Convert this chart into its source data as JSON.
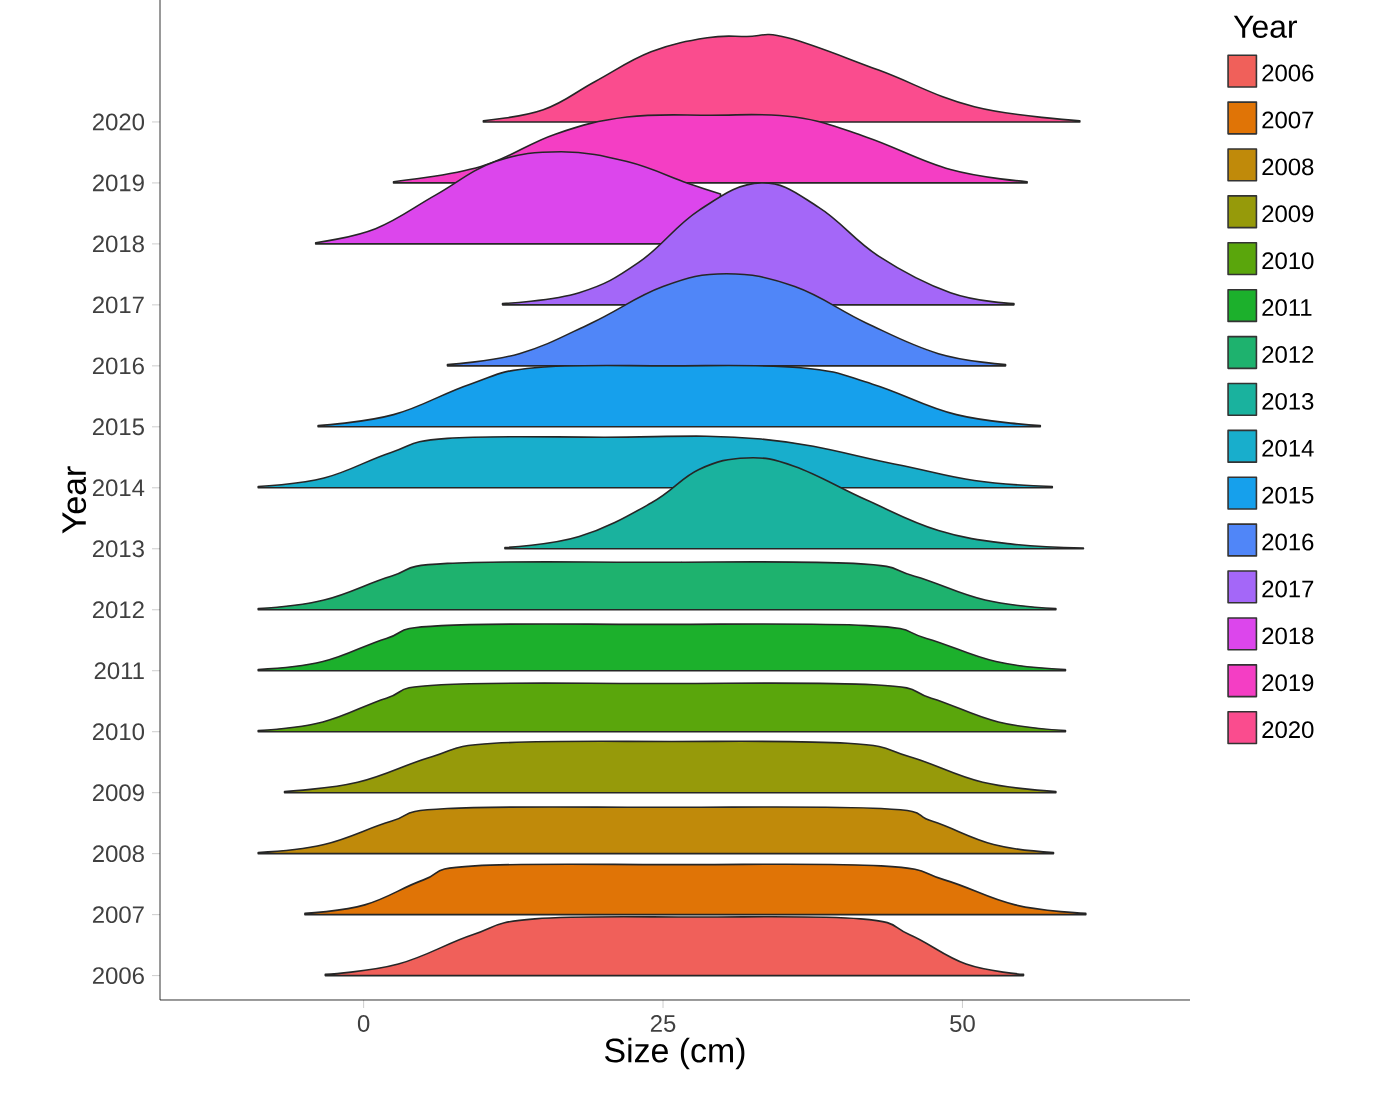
{
  "chart_data": {
    "type": "area",
    "xlabel": "Size (cm)",
    "ylabel": "Year",
    "legend_title": "Year",
    "legend": "right",
    "grid": false,
    "xlim": [
      -17,
      69
    ],
    "xticks": [
      0,
      25,
      50
    ],
    "ylim": [
      2005.6,
      2022
    ],
    "yticks": [
      2006,
      2007,
      2008,
      2009,
      2010,
      2011,
      2012,
      2013,
      2014,
      2015,
      2016,
      2017,
      2018,
      2019,
      2020
    ],
    "series": [
      {
        "name": "2006",
        "color": "#f0605a",
        "x": [
          -3.2,
          2.9,
          9.1,
          14.3,
          27.9,
          41.5,
          45.6,
          50.3,
          55.1
        ],
        "values": [
          2006.02,
          2006.19,
          2006.67,
          2006.93,
          2006.96,
          2006.93,
          2006.67,
          2006.19,
          2006.02
        ]
      },
      {
        "name": "2007",
        "color": "#e07406",
        "x": [
          -4.9,
          0.1,
          5.0,
          9.3,
          26.3,
          43.2,
          48.5,
          54.4,
          60.3
        ],
        "values": [
          2007.02,
          2007.16,
          2007.57,
          2007.8,
          2007.82,
          2007.8,
          2007.57,
          2007.16,
          2007.02
        ]
      },
      {
        "name": "2008",
        "color": "#c08a0a",
        "x": [
          -8.8,
          -3.3,
          2.3,
          7,
          25.1,
          43.2,
          47.5,
          52.6,
          57.6
        ],
        "values": [
          2008.02,
          2008.15,
          2008.53,
          2008.74,
          2008.76,
          2008.74,
          2008.53,
          2008.15,
          2008.02
        ]
      },
      {
        "name": "2009",
        "color": "#969a0a",
        "x": [
          -6.6,
          -0.5,
          5.7,
          10.9,
          25.7,
          40.4,
          45.6,
          51.7,
          57.8
        ],
        "values": [
          2009.02,
          2009.17,
          2009.59,
          2009.81,
          2009.84,
          2009.81,
          2009.59,
          2009.17,
          2009.02
        ]
      },
      {
        "name": "2010",
        "color": "#5aa60c",
        "x": [
          -8.8,
          -3.4,
          1.9,
          6.5,
          24.6,
          42.6,
          47.4,
          53.0,
          58.6
        ],
        "values": [
          2010.02,
          2010.16,
          2010.55,
          2010.77,
          2010.79,
          2010.77,
          2010.55,
          2010.16,
          2010.02
        ]
      },
      {
        "name": "2011",
        "color": "#1cb02c",
        "x": [
          -8.8,
          -3.4,
          1.9,
          6.5,
          24.3,
          42,
          47,
          52.8,
          58.6
        ],
        "values": [
          2011.02,
          2011.15,
          2011.53,
          2011.74,
          2011.76,
          2011.74,
          2011.53,
          2011.15,
          2011.02
        ]
      },
      {
        "name": "2012",
        "color": "#1eb26e",
        "x": [
          -8.8,
          -3.3,
          2.3,
          7,
          24,
          40.9,
          46,
          51.9,
          57.8
        ],
        "values": [
          2012.02,
          2012.16,
          2012.55,
          2012.76,
          2012.78,
          2012.76,
          2012.55,
          2012.16,
          2012.02
        ]
      },
      {
        "name": "2013",
        "color": "#1ab29e",
        "x": [
          11.8,
          18,
          24,
          28,
          32,
          36,
          42,
          48,
          54,
          60.1
        ],
        "values": [
          2013.02,
          2013.2,
          2013.75,
          2014.3,
          2014.49,
          2014.35,
          2013.8,
          2013.3,
          2013.08,
          2013.01
        ]
      },
      {
        "name": "2014",
        "color": "#18aecc",
        "x": [
          -8.8,
          -3.3,
          2.3,
          7,
          20,
          33.2,
          44.3,
          51,
          57.5
        ],
        "values": [
          2014.02,
          2014.16,
          2014.58,
          2014.81,
          2014.83,
          2014.8,
          2014.39,
          2014.12,
          2014.02
        ]
      },
      {
        "name": "2015",
        "color": "#16a0ec",
        "x": [
          -3.8,
          2.5,
          8.9,
          14.3,
          25.4,
          36.5,
          42.5,
          49.5,
          56.5
        ],
        "values": [
          2015.02,
          2015.2,
          2015.7,
          2015.97,
          2016.0,
          2015.97,
          2015.7,
          2015.2,
          2015.02
        ]
      },
      {
        "name": "2016",
        "color": "#5086f8",
        "x": [
          7,
          13,
          19,
          25,
          30.3,
          36,
          42,
          48,
          53.6
        ],
        "values": [
          2016.02,
          2016.2,
          2016.7,
          2017.3,
          2017.51,
          2017.3,
          2016.7,
          2016.2,
          2016.02
        ]
      },
      {
        "name": "2017",
        "color": "#a467f8",
        "x": [
          11.6,
          18,
          23,
          28,
          33.2,
          38,
          43,
          49,
          54.3
        ],
        "values": [
          2017.02,
          2017.2,
          2017.7,
          2018.55,
          2019.0,
          2018.6,
          2017.8,
          2017.2,
          2017.02
        ]
      },
      {
        "name": "2018",
        "color": "#dc46ec",
        "x": [
          -4,
          1,
          6,
          11,
          16.5,
          22,
          27,
          29.8
        ],
        "values": [
          2018.02,
          2018.25,
          2018.8,
          2019.35,
          2019.51,
          2019.35,
          2019.0,
          2018.82
        ]
      },
      {
        "name": "2019",
        "color": "#f43ec4",
        "x": [
          2.5,
          9.8,
          16,
          22,
          29,
          36,
          42,
          49,
          55.4
        ],
        "values": [
          2019.02,
          2019.27,
          2019.8,
          2020.08,
          2020.11,
          2020.08,
          2019.75,
          2019.22,
          2019.02
        ]
      },
      {
        "name": "2020",
        "color": "#fa4c8e",
        "x": [
          10,
          15,
          19.3,
          24,
          28.7,
          32,
          35.4,
          43,
          51,
          59.8
        ],
        "values": [
          2020.02,
          2020.2,
          2020.66,
          2021.15,
          2021.38,
          2021.4,
          2021.38,
          2020.85,
          2020.25,
          2020.02
        ]
      }
    ]
  }
}
